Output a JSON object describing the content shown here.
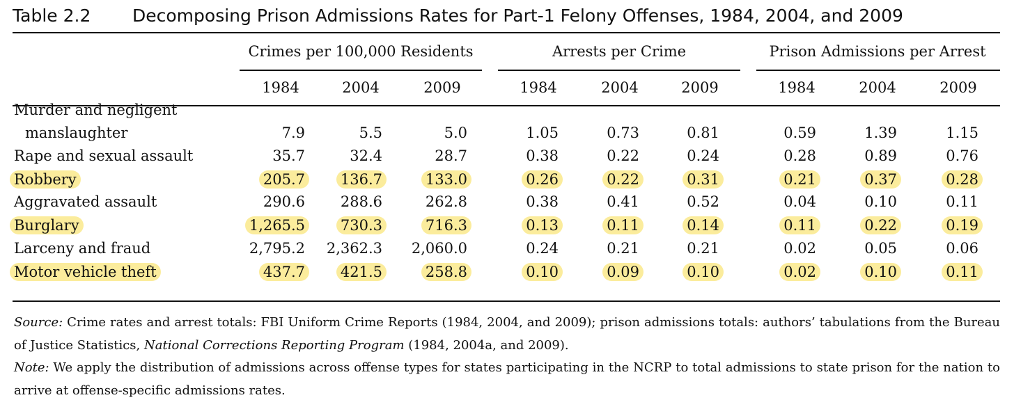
{
  "title": {
    "number": "Table 2.2",
    "text": "Decomposing Prison Admissions Rates for Part-1 Felony Offenses, 1984, 2004, and 2009"
  },
  "groups": [
    "Crimes per 100,000 Residents",
    "Arrests per Crime",
    "Prison Admissions per Arrest"
  ],
  "years": [
    "1984",
    "2004",
    "2009"
  ],
  "rows": [
    {
      "label": [
        "Murder and negligent",
        "manslaughter"
      ],
      "highlighted": false,
      "values": [
        "7.9",
        "5.5",
        "5.0",
        "1.05",
        "0.73",
        "0.81",
        "0.59",
        "1.39",
        "1.15"
      ]
    },
    {
      "label": [
        "Rape and sexual assault"
      ],
      "highlighted": false,
      "values": [
        "35.7",
        "32.4",
        "28.7",
        "0.38",
        "0.22",
        "0.24",
        "0.28",
        "0.89",
        "0.76"
      ]
    },
    {
      "label": [
        "Robbery"
      ],
      "highlighted": true,
      "values": [
        "205.7",
        "136.7",
        "133.0",
        "0.26",
        "0.22",
        "0.31",
        "0.21",
        "0.37",
        "0.28"
      ]
    },
    {
      "label": [
        "Aggravated assault"
      ],
      "highlighted": false,
      "values": [
        "290.6",
        "288.6",
        "262.8",
        "0.38",
        "0.41",
        "0.52",
        "0.04",
        "0.10",
        "0.11"
      ]
    },
    {
      "label": [
        "Burglary"
      ],
      "highlighted": true,
      "values": [
        "1,265.5",
        "730.3",
        "716.3",
        "0.13",
        "0.11",
        "0.14",
        "0.11",
        "0.22",
        "0.19"
      ]
    },
    {
      "label": [
        "Larceny and fraud"
      ],
      "highlighted": false,
      "values": [
        "2,795.2",
        "2,362.3",
        "2,060.0",
        "0.24",
        "0.21",
        "0.21",
        "0.02",
        "0.05",
        "0.06"
      ]
    },
    {
      "label": [
        "Motor vehicle theft"
      ],
      "highlighted": true,
      "values": [
        "437.7",
        "421.5",
        "258.8",
        "0.10",
        "0.09",
        "0.10",
        "0.02",
        "0.10",
        "0.11"
      ]
    }
  ],
  "notes": {
    "source_label": "Source:",
    "source_text_1": " Crime rates and arrest totals: FBI Uniform Crime Reports (1984, 2004, and 2009); prison admissions totals: authors’ tabulations from the Bureau of Justice Statistics, ",
    "source_title": "National Corrections Reporting Program",
    "source_text_2": " (1984, 2004a, and 2009).",
    "note_label": "Note:",
    "note_text": " We apply the distribution of admissions across offense types for states participating in the NCRP to total admissions to state prison for the nation to arrive at offense-specific admissions rates."
  },
  "colors": {
    "highlight": "#fbec9c",
    "text": "#111111"
  }
}
